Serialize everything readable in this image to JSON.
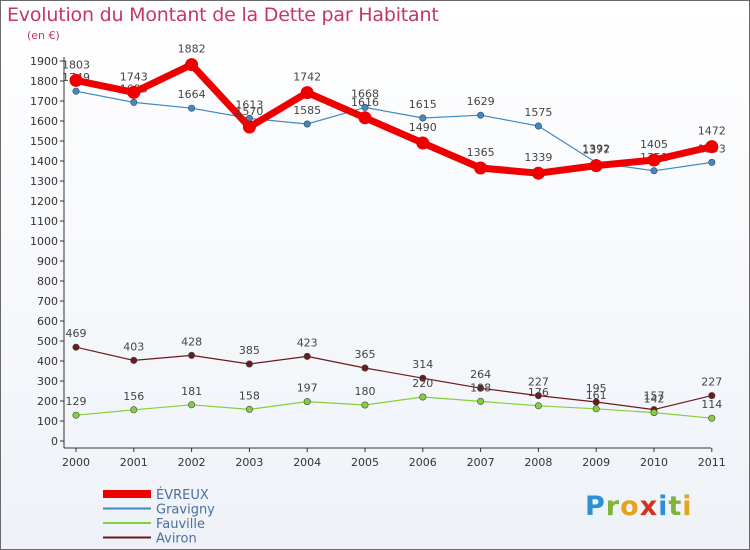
{
  "title": "Evolution du Montant de la Dette par Habitant",
  "subtitle": "(en €)",
  "brand": {
    "letters": [
      "P",
      "r",
      "o",
      "x",
      "i",
      "t",
      "i"
    ],
    "colors": [
      "#2d8fd4",
      "#7fb33a",
      "#e5a21d",
      "#d4321f",
      "#2d8fd4",
      "#7fb33a",
      "#e5a21d"
    ]
  },
  "chart_data": {
    "type": "line",
    "categories": [
      "2000",
      "2001",
      "2002",
      "2003",
      "2004",
      "2005",
      "2006",
      "2007",
      "2008",
      "2009",
      "2010",
      "2011"
    ],
    "ylim": [
      0,
      1900
    ],
    "yticks": [
      0,
      100,
      200,
      300,
      400,
      500,
      600,
      700,
      800,
      900,
      1000,
      1100,
      1200,
      1300,
      1400,
      1500,
      1600,
      1700,
      1800,
      1900
    ],
    "grid": false,
    "legend_position": "bottom-left",
    "series": [
      {
        "name": "ÉVREUX",
        "color": "#ee0000",
        "values": [
          1803,
          1743,
          1882,
          1570,
          1742,
          1616,
          1490,
          1365,
          1339,
          1377,
          1405,
          1472
        ]
      },
      {
        "name": "Gravigny",
        "color": "#3f89c6",
        "values": [
          1749,
          1693,
          1664,
          1613,
          1585,
          1668,
          1615,
          1629,
          1575,
          1392,
          1351,
          1393
        ]
      },
      {
        "name": "Fauville",
        "color": "#86cf3c",
        "values": [
          129,
          156,
          181,
          158,
          197,
          180,
          220,
          198,
          176,
          161,
          142,
          114
        ]
      },
      {
        "name": "Aviron",
        "color": "#6b1a1d",
        "values": [
          469,
          403,
          428,
          385,
          423,
          365,
          314,
          264,
          227,
          195,
          157,
          227
        ]
      }
    ]
  }
}
